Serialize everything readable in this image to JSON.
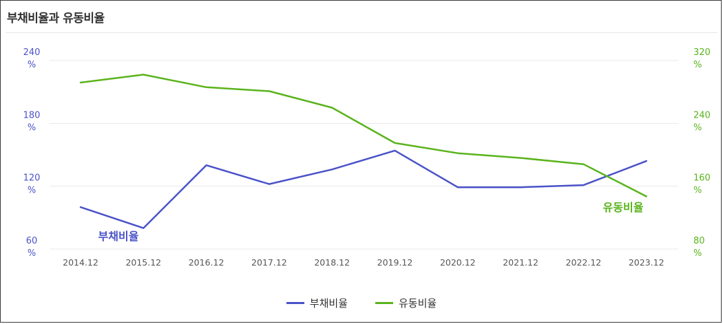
{
  "title": "부채비율과 유동비율",
  "chart_data": {
    "type": "line",
    "categories": [
      "2014.12",
      "2015.12",
      "2016.12",
      "2017.12",
      "2018.12",
      "2019.12",
      "2020.12",
      "2021.12",
      "2022.12",
      "2023.12"
    ],
    "series": [
      {
        "name": "부채비율",
        "axis": "left",
        "color": "#4a52c8",
        "values": [
          100,
          80,
          140,
          122,
          136,
          154,
          119,
          119,
          121,
          144
        ]
      },
      {
        "name": "유동비율",
        "axis": "right",
        "color": "#5ab31c",
        "values": [
          292,
          302,
          286,
          281,
          260,
          215,
          202,
          196,
          188,
          147
        ]
      }
    ],
    "y_left": {
      "ticks": [
        "240",
        "180",
        "120",
        "60"
      ],
      "unit": "%",
      "ylim": [
        60,
        240
      ],
      "color": "#4a52c8"
    },
    "y_right": {
      "ticks": [
        "320",
        "240",
        "160",
        "80"
      ],
      "unit": "%",
      "ylim": [
        80,
        320
      ],
      "color": "#5ab31c"
    },
    "grid": true,
    "legend": "bottom-center"
  }
}
